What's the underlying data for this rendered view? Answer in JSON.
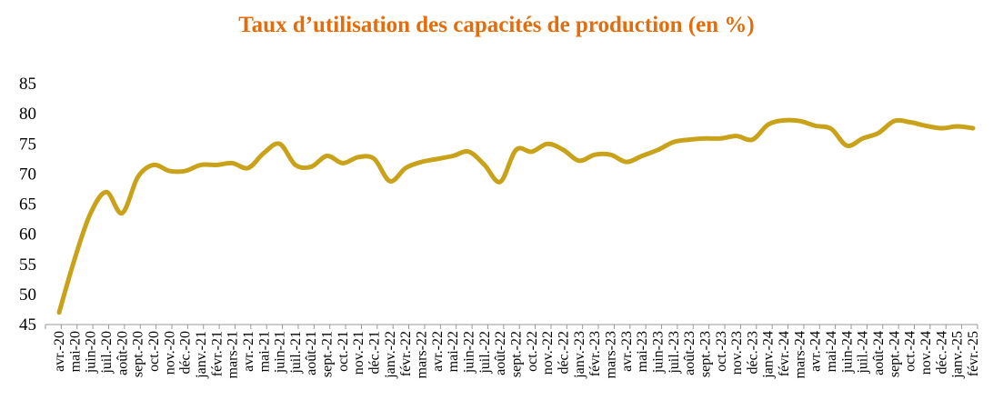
{
  "chart_data": {
    "type": "line",
    "title": "Taux d’utilisation des capacités de production (en %)",
    "xlabel": "",
    "ylabel": "",
    "ylim": [
      45,
      85
    ],
    "yticks": [
      45,
      50,
      55,
      60,
      65,
      70,
      75,
      80,
      85
    ],
    "grid": false,
    "legend": "none",
    "line_color": "#C9A21A",
    "title_color": "#E46C0A",
    "categories": [
      "avr.-20",
      "mai-20",
      "juin-20",
      "juil.-20",
      "août-20",
      "sept.-20",
      "oct.-20",
      "nov.-20",
      "déc.-20",
      "janv.-21",
      "févr.-21",
      "mars-21",
      "avr.-21",
      "mai-21",
      "juin-21",
      "juil.-21",
      "août-21",
      "sept.-21",
      "oct.-21",
      "nov.-21",
      "déc.-21",
      "janv.-22",
      "févr.-22",
      "mars-22",
      "avr.-22",
      "mai-22",
      "juin-22",
      "juil.-22",
      "août-22",
      "sept.-22",
      "oct.-22",
      "nov.-22",
      "déc.-22",
      "janv.-23",
      "févr.-23",
      "mars-23",
      "avr.-23",
      "mai-23",
      "juin-23",
      "juil.-23",
      "août-23",
      "sept.-23",
      "oct.-23",
      "nov.-23",
      "déc.-23",
      "janv.-24",
      "févr.-24",
      "mars-24",
      "avr.-24",
      "mai-24",
      "juin-24",
      "juil.-24",
      "août-24",
      "sept.-24",
      "oct.-24",
      "nov.-24",
      "déc.-24",
      "janv.-25",
      "févr.-25"
    ],
    "values": [
      47.0,
      56.0,
      63.5,
      67.0,
      63.5,
      69.5,
      71.5,
      70.5,
      70.5,
      71.5,
      71.5,
      71.8,
      71.0,
      73.5,
      75.0,
      71.5,
      71.2,
      73.0,
      71.8,
      72.8,
      72.5,
      68.8,
      71.0,
      72.0,
      72.5,
      73.0,
      73.7,
      71.5,
      68.7,
      74.0,
      73.7,
      75.0,
      74.0,
      72.2,
      73.2,
      73.2,
      72.0,
      73.0,
      74.0,
      75.3,
      75.7,
      75.9,
      75.9,
      76.3,
      75.7,
      78.2,
      78.9,
      78.8,
      78.0,
      77.5,
      74.7,
      75.9,
      76.8,
      78.8,
      78.6,
      78.0,
      77.6,
      77.9,
      77.6
    ]
  }
}
